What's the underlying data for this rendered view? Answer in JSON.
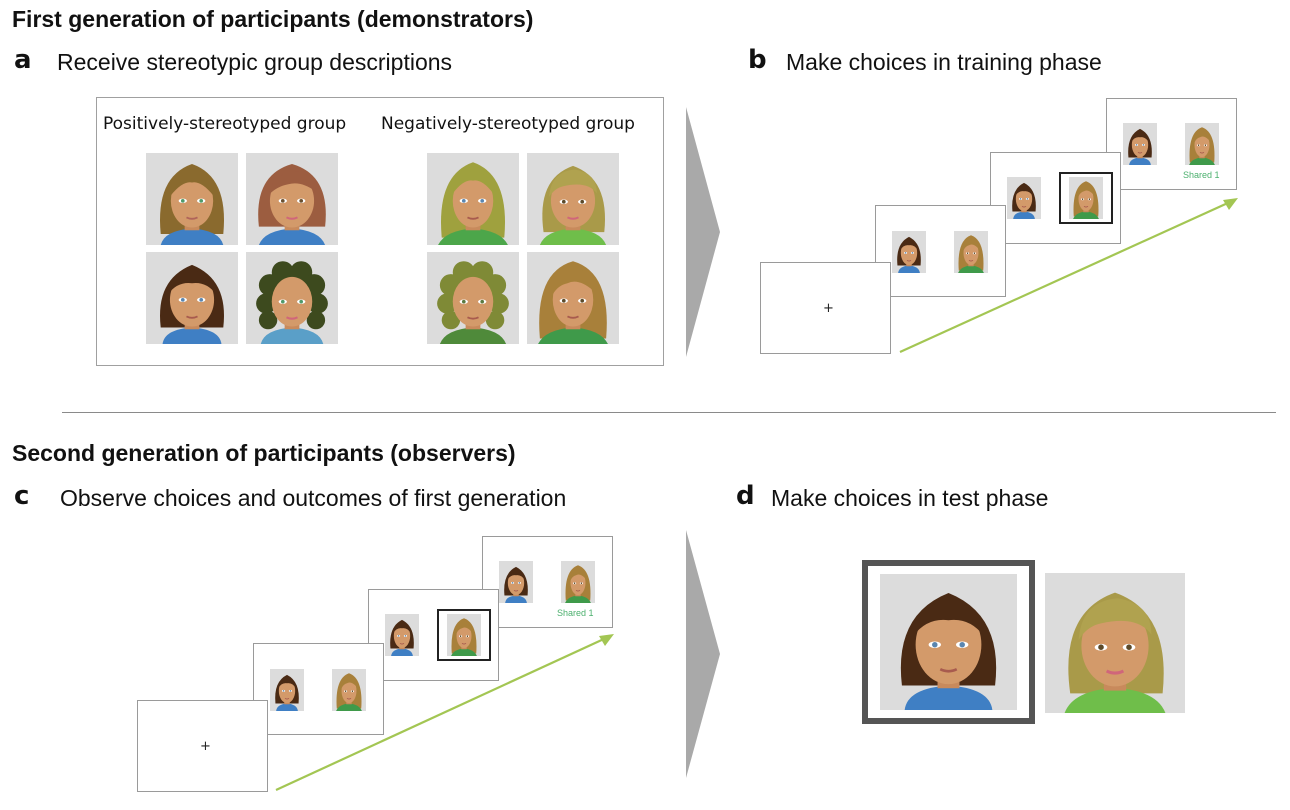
{
  "first_generation": {
    "title": "First generation of participants (demonstrators)",
    "panel_a": {
      "letter": "a",
      "label": "Receive stereotypic group descriptions",
      "group_positive": "Positively-stereotyped group",
      "group_negative": "Negatively-stereotyped group"
    },
    "panel_b": {
      "letter": "b",
      "label": "Make choices in training phase",
      "fixation": "+",
      "feedback": "Shared 1"
    }
  },
  "second_generation": {
    "title": "Second generation of participants (observers)",
    "panel_c": {
      "letter": "c",
      "label": "Observe choices and outcomes of first generation",
      "fixation": "+",
      "feedback": "Shared 1"
    },
    "panel_d": {
      "letter": "d",
      "label": "Make choices in test phase"
    }
  },
  "colors": {
    "arrow_green": "#a3c653",
    "chevron_gray": "#a9a9a9",
    "feedback_green": "#4cb06e",
    "frame_dark": "#555555",
    "face_background": "#dcdcdc"
  }
}
